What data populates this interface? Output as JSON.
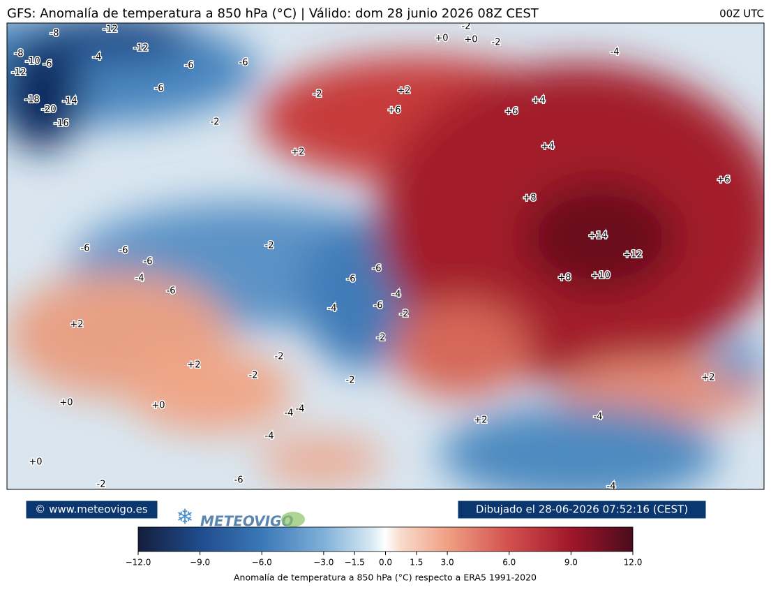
{
  "header": {
    "title": "GFS: Anomalía de temperatura a 850 hPa (°C) | Válido: dom 28 junio 2026 08Z CEST",
    "run": "00Z UTC"
  },
  "map": {
    "contour_labels": [
      "-8",
      "-12",
      "-12",
      "-8",
      "-10",
      "-6",
      "-4",
      "-6",
      "-6",
      "-12",
      "-18",
      "-20",
      "-14",
      "-16",
      "-6",
      "-2",
      "-2",
      "+2",
      "+6",
      "+2",
      "+6",
      "+4",
      "+4",
      "-4",
      "-2",
      "+0",
      "+0",
      "-2",
      "+8",
      "+6",
      "+14",
      "+12",
      "+8",
      "+10",
      "-2",
      "-6",
      "-6",
      "-6",
      "-4",
      "-6",
      "-6",
      "-6",
      "-4",
      "-6",
      "-4",
      "-2",
      "-2",
      "+2",
      "+2",
      "-2",
      "-2",
      "-2",
      "+0",
      "+0",
      "-4",
      "-4",
      "-4",
      "+2",
      "-4",
      "+0",
      "-6",
      "-2",
      "-4",
      "+2"
    ]
  },
  "footer": {
    "credit": "© www.meteovigo.es",
    "logo": "METEOVIGO",
    "drawn": "Dibujado el 28-06-2026 07:52:16 (CEST)"
  },
  "colorbar": {
    "lim": [
      -12,
      12
    ],
    "ticks": [
      {
        "value": -12,
        "label": "−12.0"
      },
      {
        "value": -9,
        "label": "−9.0"
      },
      {
        "value": -6,
        "label": "−6.0"
      },
      {
        "value": -3,
        "label": "−3.0"
      },
      {
        "value": -1.5,
        "label": "−1.5"
      },
      {
        "value": 0,
        "label": "0.0"
      },
      {
        "value": 1.5,
        "label": "1.5"
      },
      {
        "value": 3,
        "label": "3.0"
      },
      {
        "value": 6,
        "label": "6.0"
      },
      {
        "value": 9,
        "label": "9.0"
      },
      {
        "value": 12,
        "label": "12.0"
      }
    ],
    "label": "Anomalía de temperatura a 850 hPa (°C) respecto a ERA5 1991-2020"
  }
}
